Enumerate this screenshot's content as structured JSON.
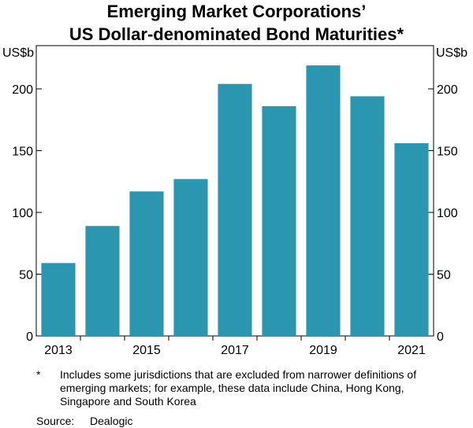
{
  "chart_data": {
    "type": "bar",
    "title_lines": [
      "Emerging Market Corporations’",
      "US Dollar-denominated Bond Maturities*"
    ],
    "unit_left": "US$b",
    "unit_right": "US$b",
    "categories": [
      "2013",
      "2014",
      "2015",
      "2016",
      "2017",
      "2018",
      "2019",
      "2020",
      "2021"
    ],
    "values": [
      59,
      89,
      117,
      127,
      204,
      186,
      219,
      194,
      156
    ],
    "x_tick_labels": [
      "2013",
      "",
      "2015",
      "",
      "2017",
      "",
      "2019",
      "",
      "2021"
    ],
    "ylim": [
      0,
      235
    ],
    "yticks": [
      0,
      50,
      100,
      150,
      200
    ],
    "bar_color": "#2a96b0",
    "grid": false
  },
  "footnote": {
    "marker": "*",
    "text": "Includes some jurisdictions that are excluded from narrower definitions of emerging markets; for example, these data include China, Hong Kong, Singapore and South Korea"
  },
  "source": {
    "label": "Source:",
    "value": "Dealogic"
  }
}
